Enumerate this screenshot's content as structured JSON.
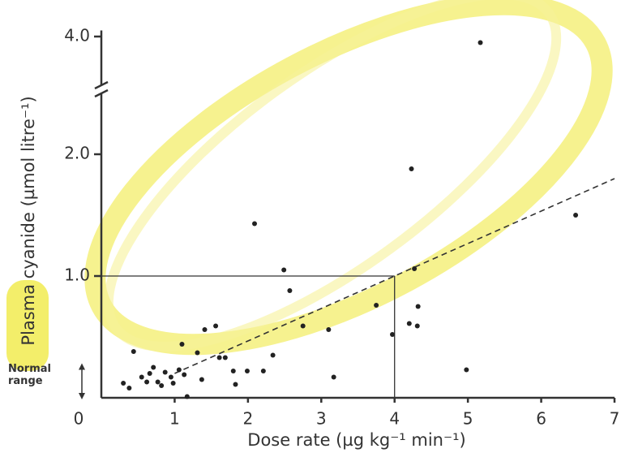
{
  "chart_data": {
    "type": "scatter",
    "x_label": "Dose rate (µg kg⁻¹ min⁻¹)",
    "y_label": "Plasma cyanide (µmol litre⁻¹)",
    "xlim": [
      0,
      7
    ],
    "xticks": [
      0,
      1,
      2,
      3,
      4,
      5,
      6,
      7
    ],
    "ylim": [
      0,
      4.05
    ],
    "yticks": [
      {
        "value": 1,
        "label": "1.0"
      },
      {
        "value": 2,
        "label": "2.0"
      },
      {
        "value": 4,
        "label": "4.0"
      }
    ],
    "y_axis_break": [
      2.5,
      3.6
    ],
    "color": "#222222",
    "x": [
      5.17,
      4.23,
      6.47,
      2.09,
      2.49,
      4.27,
      2.57,
      3.75,
      4.32,
      2.75,
      3.1,
      1.41,
      1.56,
      1.1,
      4.2,
      4.31,
      3.97,
      0.44,
      1.31,
      1.61,
      1.69,
      2.34,
      1.8,
      1.99,
      2.21,
      3.17,
      4.98,
      1.83,
      1.37,
      1.17,
      0.3,
      0.55,
      0.66,
      0.77,
      0.87,
      0.95,
      1.06,
      0.38,
      0.82,
      0.71,
      1.13,
      0.98,
      0.62
    ],
    "values": [
      3.95,
      1.88,
      1.5,
      1.43,
      1.05,
      1.06,
      0.88,
      0.76,
      0.75,
      0.59,
      0.56,
      0.56,
      0.59,
      0.44,
      0.61,
      0.59,
      0.52,
      0.38,
      0.37,
      0.33,
      0.33,
      0.35,
      0.22,
      0.22,
      0.22,
      0.17,
      0.23,
      0.11,
      0.15,
      0.01,
      0.12,
      0.17,
      0.2,
      0.13,
      0.21,
      0.17,
      0.23,
      0.08,
      0.1,
      0.25,
      0.19,
      0.12,
      0.13
    ],
    "trend_line": {
      "x": [
        1.0,
        7.0
      ],
      "y": [
        0.2,
        1.8
      ]
    },
    "reference_point": {
      "x": 4,
      "y": 1.0
    },
    "normal_range": {
      "label": [
        "Normal",
        "range"
      ],
      "range": [
        0.0,
        0.27
      ]
    }
  }
}
